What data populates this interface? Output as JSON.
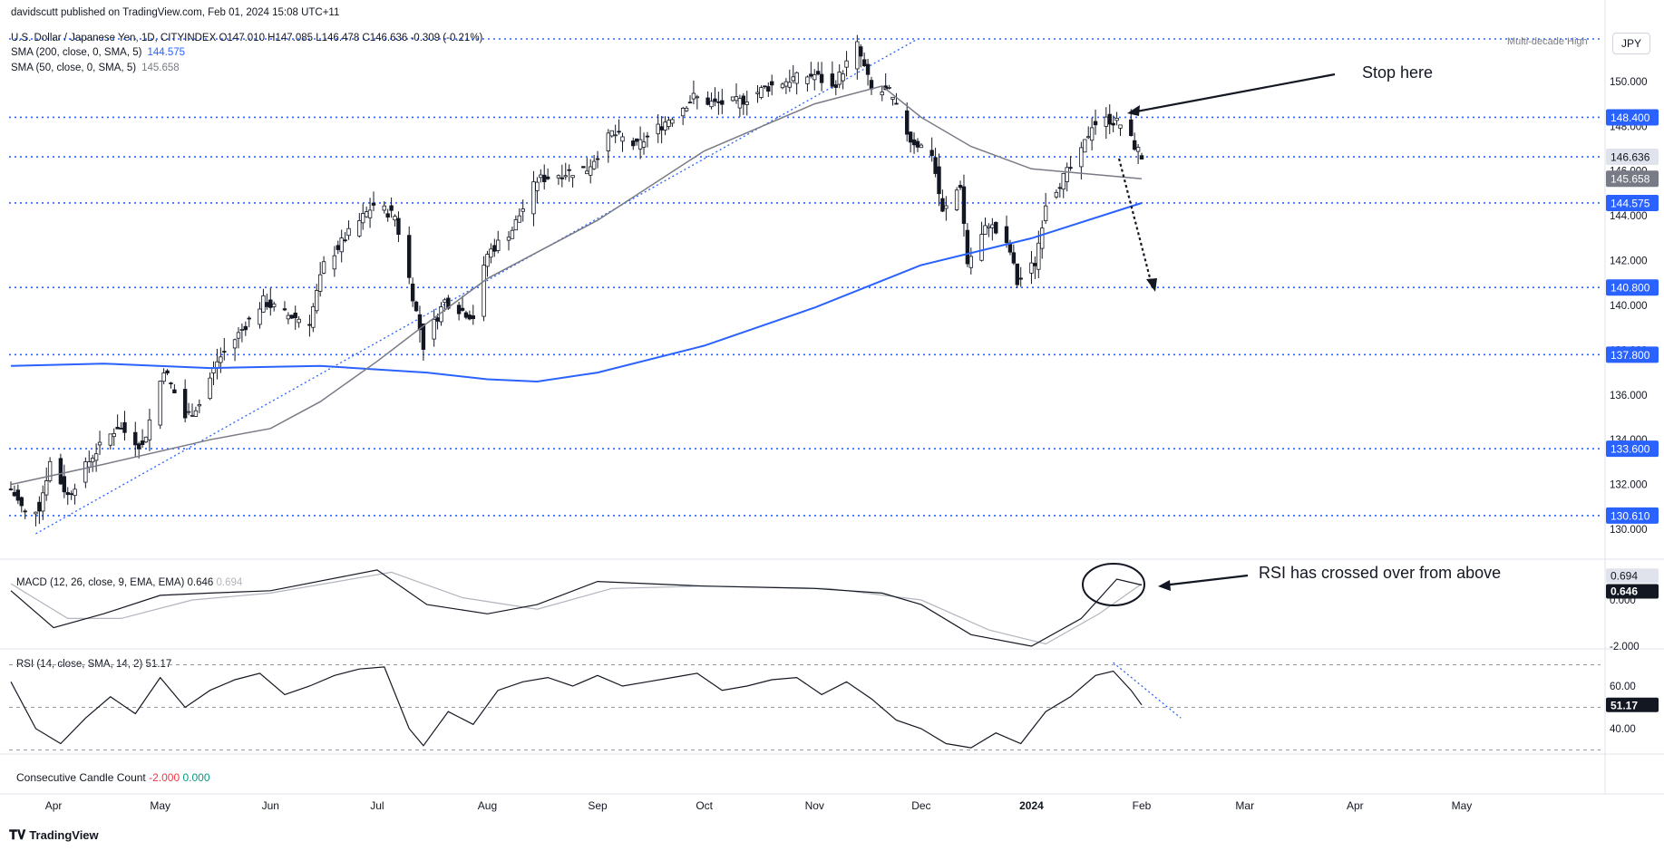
{
  "header": {
    "published": "davidscutt published on TradingView.com, Feb 01, 2024 15:08 UTC+11",
    "symbol_line": "U.S. Dollar / Japanese Yen, 1D, CITYINDEX  O147.010  H147.085  L146.478  C146.636  -0.309 (-0.21%)",
    "sma200_label": "SMA (200, close, 0, SMA, 5)",
    "sma200_value": "144.575",
    "sma50_label": "SMA (50, close, 0, SMA, 5)",
    "sma50_value": "145.658"
  },
  "currency_button": "JPY",
  "annotations": {
    "stop_here": "Stop here",
    "rsi_note": "RSI has crossed over from above",
    "multi_decade_high": "Multi-decade High"
  },
  "footer": {
    "ccc_label": "Consecutive Candle Count",
    "ccc_value1": "-2.000",
    "ccc_value2": "0.000",
    "brand": "TradingView"
  },
  "colors": {
    "sma200": "#2962ff",
    "sma50": "#787b86",
    "levels": "#2962ff",
    "candle": "#131722"
  },
  "chart_data": [
    {
      "type": "candlestick",
      "title": "U.S. Dollar / Japanese Yen, 1D, CITYINDEX",
      "price_axis_ticks": [
        "150.000",
        "148.000",
        "146.000",
        "144.000",
        "142.000",
        "140.000",
        "138.000",
        "136.000",
        "134.000",
        "132.000",
        "130.000"
      ],
      "ylim": [
        129.5,
        152.5
      ],
      "time_axis_labels": [
        "Apr",
        "May",
        "Jun",
        "Jul",
        "Aug",
        "Sep",
        "Oct",
        "Nov",
        "Dec",
        "2024",
        "Feb",
        "Mar",
        "Apr",
        "May"
      ],
      "horizontal_levels": [
        151.9,
        148.4,
        146.636,
        144.575,
        140.8,
        137.8,
        133.6,
        130.61
      ],
      "level_labels": [
        "148.400",
        "146.636",
        "145.658",
        "144.575",
        "140.800",
        "137.800",
        "133.600",
        "130.610"
      ],
      "last_price": "146.636",
      "close_path": [
        [
          "2023-03-20",
          131.8
        ],
        [
          "2023-03-24",
          130.7
        ],
        [
          "2023-03-28",
          131.0
        ],
        [
          "2023-03-31",
          133.0
        ],
        [
          "2023-04-05",
          131.5
        ],
        [
          "2023-04-12",
          133.3
        ],
        [
          "2023-04-19",
          134.6
        ],
        [
          "2023-04-26",
          133.7
        ],
        [
          "2023-05-02",
          137.2
        ],
        [
          "2023-05-08",
          135.0
        ],
        [
          "2023-05-12",
          135.6
        ],
        [
          "2023-05-17",
          137.5
        ],
        [
          "2023-05-22",
          138.5
        ],
        [
          "2023-05-30",
          140.2
        ],
        [
          "2023-06-05",
          139.6
        ],
        [
          "2023-06-12",
          139.3
        ],
        [
          "2023-06-16",
          141.8
        ],
        [
          "2023-06-23",
          143.2
        ],
        [
          "2023-06-30",
          144.5
        ],
        [
          "2023-07-06",
          144.0
        ],
        [
          "2023-07-10",
          141.2
        ],
        [
          "2023-07-14",
          138.2
        ],
        [
          "2023-07-20",
          140.2
        ],
        [
          "2023-07-28",
          139.5
        ],
        [
          "2023-08-01",
          142.3
        ],
        [
          "2023-08-08",
          143.4
        ],
        [
          "2023-08-15",
          145.6
        ],
        [
          "2023-08-22",
          145.9
        ],
        [
          "2023-08-29",
          146.1
        ],
        [
          "2023-09-05",
          147.7
        ],
        [
          "2023-09-12",
          147.1
        ],
        [
          "2023-09-20",
          148.2
        ],
        [
          "2023-09-28",
          149.3
        ],
        [
          "2023-10-04",
          149.0
        ],
        [
          "2023-10-11",
          149.1
        ],
        [
          "2023-10-18",
          149.7
        ],
        [
          "2023-10-25",
          150.1
        ],
        [
          "2023-11-01",
          150.3
        ],
        [
          "2023-11-06",
          149.7
        ],
        [
          "2023-11-13",
          151.6
        ],
        [
          "2023-11-17",
          149.6
        ],
        [
          "2023-11-22",
          149.5
        ],
        [
          "2023-11-28",
          147.4
        ],
        [
          "2023-12-04",
          146.8
        ],
        [
          "2023-12-07",
          144.1
        ],
        [
          "2023-12-12",
          145.4
        ],
        [
          "2023-12-14",
          141.9
        ],
        [
          "2023-12-20",
          143.7
        ],
        [
          "2023-12-26",
          142.4
        ],
        [
          "2023-12-28",
          141.0
        ],
        [
          "2024-01-02",
          141.9
        ],
        [
          "2024-01-05",
          144.6
        ],
        [
          "2024-01-10",
          145.7
        ],
        [
          "2024-01-15",
          146.8
        ],
        [
          "2024-01-18",
          148.1
        ],
        [
          "2024-01-23",
          148.3
        ],
        [
          "2024-01-26",
          148.1
        ],
        [
          "2024-01-31",
          146.9
        ],
        [
          "2024-02-01",
          146.636
        ]
      ],
      "sma_200_path": [
        [
          "2023-03-20",
          137.3
        ],
        [
          "2023-04-15",
          137.4
        ],
        [
          "2023-05-15",
          137.2
        ],
        [
          "2023-06-15",
          137.3
        ],
        [
          "2023-07-15",
          137.0
        ],
        [
          "2023-08-01",
          136.7
        ],
        [
          "2023-08-15",
          136.6
        ],
        [
          "2023-09-01",
          137.0
        ],
        [
          "2023-10-01",
          138.2
        ],
        [
          "2023-11-01",
          139.9
        ],
        [
          "2023-12-01",
          141.8
        ],
        [
          "2024-01-01",
          143.0
        ],
        [
          "2024-02-01",
          144.575
        ]
      ],
      "sma_50_path": [
        [
          "2023-03-20",
          132.0
        ],
        [
          "2023-04-15",
          132.9
        ],
        [
          "2023-05-15",
          134.0
        ],
        [
          "2023-06-01",
          134.5
        ],
        [
          "2023-06-15",
          135.7
        ],
        [
          "2023-07-01",
          137.5
        ],
        [
          "2023-07-15",
          139.2
        ],
        [
          "2023-08-01",
          141.2
        ],
        [
          "2023-09-01",
          143.8
        ],
        [
          "2023-10-01",
          146.9
        ],
        [
          "2023-11-01",
          149.0
        ],
        [
          "2023-11-20",
          149.8
        ],
        [
          "2023-12-01",
          148.4
        ],
        [
          "2023-12-15",
          147.1
        ],
        [
          "2024-01-01",
          146.1
        ],
        [
          "2024-02-01",
          145.658
        ]
      ]
    },
    {
      "type": "line",
      "title": "MACD (12, 26, close, 9, EMA, EMA)",
      "macd_value": "0.646",
      "signal_value": "0.694",
      "y_ticks": [
        "0.000",
        "-2.000"
      ],
      "ylim": [
        -2.5,
        1.5
      ],
      "macd_path": [
        [
          "2023-03-20",
          0.4
        ],
        [
          "2023-04-01",
          -1.2
        ],
        [
          "2023-04-15",
          -0.6
        ],
        [
          "2023-05-01",
          0.2
        ],
        [
          "2023-05-15",
          0.3
        ],
        [
          "2023-06-01",
          0.4
        ],
        [
          "2023-07-01",
          1.3
        ],
        [
          "2023-07-15",
          -0.2
        ],
        [
          "2023-08-01",
          -0.6
        ],
        [
          "2023-08-15",
          -0.2
        ],
        [
          "2023-09-01",
          0.8
        ],
        [
          "2023-10-01",
          0.6
        ],
        [
          "2023-11-01",
          0.5
        ],
        [
          "2023-11-20",
          0.3
        ],
        [
          "2023-12-01",
          -0.2
        ],
        [
          "2023-12-15",
          -1.5
        ],
        [
          "2024-01-01",
          -2.0
        ],
        [
          "2024-01-15",
          -0.8
        ],
        [
          "2024-01-25",
          0.9
        ],
        [
          "2024-02-01",
          0.646
        ]
      ],
      "signal_path": [
        [
          "2023-03-20",
          0.7
        ],
        [
          "2023-04-05",
          -0.8
        ],
        [
          "2023-04-20",
          -0.8
        ],
        [
          "2023-05-10",
          0.0
        ],
        [
          "2023-06-01",
          0.3
        ],
        [
          "2023-07-05",
          1.2
        ],
        [
          "2023-07-25",
          0.1
        ],
        [
          "2023-08-15",
          -0.4
        ],
        [
          "2023-09-05",
          0.5
        ],
        [
          "2023-10-01",
          0.6
        ],
        [
          "2023-11-05",
          0.5
        ],
        [
          "2023-12-01",
          0.0
        ],
        [
          "2023-12-20",
          -1.3
        ],
        [
          "2024-01-05",
          -1.9
        ],
        [
          "2024-01-20",
          -0.6
        ],
        [
          "2024-02-01",
          0.694
        ]
      ]
    },
    {
      "type": "line",
      "title": "RSI (14, close, SMA, 14, 2)",
      "rsi_value": "51.17",
      "y_ticks": [
        "60.00",
        "40.00"
      ],
      "ylim": [
        25,
        75
      ],
      "bands": [
        70,
        50,
        30
      ],
      "rsi_path": [
        [
          "2023-03-20",
          62
        ],
        [
          "2023-03-27",
          40
        ],
        [
          "2023-04-03",
          33
        ],
        [
          "2023-04-10",
          45
        ],
        [
          "2023-04-17",
          55
        ],
        [
          "2023-04-24",
          47
        ],
        [
          "2023-05-01",
          64
        ],
        [
          "2023-05-08",
          50
        ],
        [
          "2023-05-15",
          58
        ],
        [
          "2023-05-22",
          63
        ],
        [
          "2023-05-29",
          66
        ],
        [
          "2023-06-05",
          56
        ],
        [
          "2023-06-12",
          60
        ],
        [
          "2023-06-19",
          65
        ],
        [
          "2023-06-26",
          68
        ],
        [
          "2023-07-03",
          69
        ],
        [
          "2023-07-10",
          40
        ],
        [
          "2023-07-14",
          32
        ],
        [
          "2023-07-21",
          48
        ],
        [
          "2023-07-28",
          42
        ],
        [
          "2023-08-04",
          58
        ],
        [
          "2023-08-11",
          62
        ],
        [
          "2023-08-18",
          64
        ],
        [
          "2023-08-25",
          60
        ],
        [
          "2023-09-01",
          65
        ],
        [
          "2023-09-08",
          60
        ],
        [
          "2023-09-15",
          62
        ],
        [
          "2023-09-22",
          64
        ],
        [
          "2023-09-29",
          66
        ],
        [
          "2023-10-06",
          58
        ],
        [
          "2023-10-13",
          60
        ],
        [
          "2023-10-20",
          63
        ],
        [
          "2023-10-27",
          64
        ],
        [
          "2023-11-03",
          56
        ],
        [
          "2023-11-10",
          62
        ],
        [
          "2023-11-17",
          54
        ],
        [
          "2023-11-24",
          44
        ],
        [
          "2023-12-01",
          40
        ],
        [
          "2023-12-08",
          33
        ],
        [
          "2023-12-15",
          31
        ],
        [
          "2023-12-22",
          38
        ],
        [
          "2023-12-29",
          33
        ],
        [
          "2024-01-05",
          48
        ],
        [
          "2024-01-12",
          55
        ],
        [
          "2024-01-19",
          65
        ],
        [
          "2024-01-24",
          67
        ],
        [
          "2024-01-29",
          58
        ],
        [
          "2024-02-01",
          51.17
        ]
      ]
    }
  ]
}
